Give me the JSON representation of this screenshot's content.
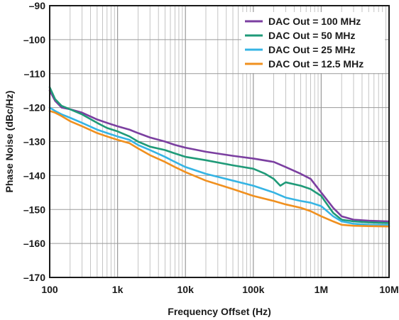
{
  "chart_data": {
    "type": "line",
    "title": "",
    "xlabel": "Frequency Offset (Hz)",
    "ylabel": "Phase Noise (dBc/Hz)",
    "xscale": "log",
    "xlim": [
      100,
      10000000
    ],
    "ylim": [
      -170,
      -90
    ],
    "x_ticks": [
      100,
      1000,
      10000,
      100000,
      1000000,
      10000000
    ],
    "x_tick_labels": [
      "100",
      "1k",
      "10k",
      "100k",
      "1M",
      "10M"
    ],
    "y_ticks": [
      -90,
      -100,
      -110,
      -120,
      -130,
      -140,
      -150,
      -160,
      -170
    ],
    "y_tick_labels": [
      "–90",
      "–100",
      "–110",
      "–120",
      "–130",
      "–140",
      "–150",
      "–160",
      "–170"
    ],
    "grid": true,
    "legend_position": "top-right",
    "series": [
      {
        "name": "DAC Out = 100 MHz",
        "color": "#7b3fa0",
        "points": [
          [
            100,
            -115
          ],
          [
            120,
            -118
          ],
          [
            150,
            -120
          ],
          [
            200,
            -120.5
          ],
          [
            300,
            -121.5
          ],
          [
            500,
            -123.5
          ],
          [
            700,
            -124.5
          ],
          [
            1000,
            -125.5
          ],
          [
            1500,
            -126.5
          ],
          [
            2000,
            -127.5
          ],
          [
            3000,
            -128.8
          ],
          [
            5000,
            -130
          ],
          [
            7000,
            -131
          ],
          [
            10000,
            -131.8
          ],
          [
            20000,
            -133
          ],
          [
            50000,
            -134.2
          ],
          [
            100000,
            -135
          ],
          [
            200000,
            -136
          ],
          [
            300000,
            -137.5
          ],
          [
            500000,
            -139.5
          ],
          [
            700000,
            -141
          ],
          [
            1000000,
            -145
          ],
          [
            1500000,
            -149.5
          ],
          [
            2000000,
            -152
          ],
          [
            3000000,
            -153
          ],
          [
            5000000,
            -153.3
          ],
          [
            10000000,
            -153.5
          ]
        ]
      },
      {
        "name": "DAC Out = 50 MHz",
        "color": "#1f9a78",
        "points": [
          [
            100,
            -114
          ],
          [
            120,
            -117.5
          ],
          [
            150,
            -119.5
          ],
          [
            200,
            -120.5
          ],
          [
            300,
            -122
          ],
          [
            500,
            -124.5
          ],
          [
            700,
            -126
          ],
          [
            1000,
            -127
          ],
          [
            1500,
            -128.5
          ],
          [
            2000,
            -130
          ],
          [
            3000,
            -131.5
          ],
          [
            5000,
            -132.5
          ],
          [
            7000,
            -133.5
          ],
          [
            10000,
            -134.5
          ],
          [
            20000,
            -135.5
          ],
          [
            50000,
            -137
          ],
          [
            100000,
            -138
          ],
          [
            150000,
            -139.5
          ],
          [
            200000,
            -141
          ],
          [
            250000,
            -143
          ],
          [
            300000,
            -142
          ],
          [
            500000,
            -143
          ],
          [
            700000,
            -144
          ],
          [
            1000000,
            -146
          ],
          [
            1500000,
            -151
          ],
          [
            2000000,
            -153
          ],
          [
            3000000,
            -153.5
          ],
          [
            5000000,
            -153.8
          ],
          [
            10000000,
            -154
          ]
        ]
      },
      {
        "name": "DAC Out = 25 MHz",
        "color": "#35b4e4",
        "points": [
          [
            100,
            -120
          ],
          [
            120,
            -121
          ],
          [
            150,
            -122
          ],
          [
            200,
            -123
          ],
          [
            300,
            -124.5
          ],
          [
            500,
            -126.5
          ],
          [
            700,
            -127.5
          ],
          [
            1000,
            -128.5
          ],
          [
            1500,
            -129.5
          ],
          [
            2000,
            -131
          ],
          [
            3000,
            -132.5
          ],
          [
            5000,
            -134.5
          ],
          [
            7000,
            -136
          ],
          [
            10000,
            -137.5
          ],
          [
            20000,
            -139.5
          ],
          [
            50000,
            -141.5
          ],
          [
            100000,
            -143
          ],
          [
            200000,
            -145
          ],
          [
            300000,
            -146.5
          ],
          [
            500000,
            -147.5
          ],
          [
            700000,
            -148
          ],
          [
            1000000,
            -149
          ],
          [
            1500000,
            -152
          ],
          [
            2000000,
            -153.5
          ],
          [
            3000000,
            -154.2
          ],
          [
            5000000,
            -154.5
          ],
          [
            10000000,
            -154.6
          ]
        ]
      },
      {
        "name": "DAC Out = 12.5 MHz",
        "color": "#f0901f",
        "points": [
          [
            100,
            -121
          ],
          [
            120,
            -121.5
          ],
          [
            150,
            -122.5
          ],
          [
            200,
            -124
          ],
          [
            300,
            -125.5
          ],
          [
            500,
            -127.5
          ],
          [
            700,
            -128.5
          ],
          [
            1000,
            -129.5
          ],
          [
            1500,
            -130.5
          ],
          [
            2000,
            -132
          ],
          [
            3000,
            -134
          ],
          [
            5000,
            -136
          ],
          [
            7000,
            -137.5
          ],
          [
            10000,
            -139
          ],
          [
            20000,
            -141.5
          ],
          [
            50000,
            -144
          ],
          [
            100000,
            -146
          ],
          [
            200000,
            -147.5
          ],
          [
            300000,
            -148.5
          ],
          [
            500000,
            -149.5
          ],
          [
            700000,
            -150.5
          ],
          [
            1000000,
            -152
          ],
          [
            1500000,
            -153.5
          ],
          [
            2000000,
            -154.5
          ],
          [
            3000000,
            -154.8
          ],
          [
            5000000,
            -154.9
          ],
          [
            10000000,
            -155
          ]
        ]
      }
    ]
  }
}
